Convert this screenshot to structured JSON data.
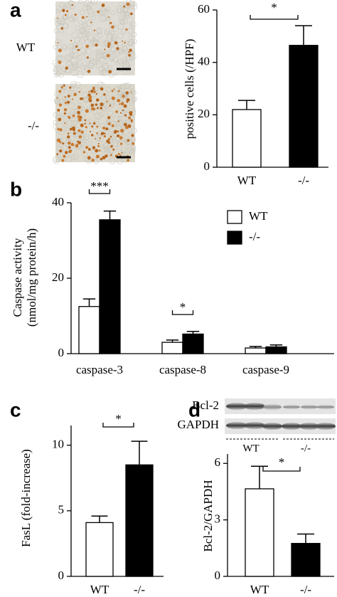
{
  "chart_data": [
    {
      "type": "bar",
      "panel_label": "a",
      "image_labels": [
        "WT",
        "-/-"
      ],
      "y_label": [
        "positive cells (/HPF)"
      ],
      "categories": [
        "WT",
        "-/-"
      ],
      "values": [
        22,
        46.5
      ],
      "errors": [
        3.5,
        7.5
      ],
      "colors": [
        "#ffffff",
        "#000000"
      ],
      "ylim": [
        0,
        60
      ],
      "yticks": [
        0,
        20,
        40,
        60
      ],
      "significance": "*"
    },
    {
      "type": "bar",
      "panel_label": "b",
      "y_label": [
        "Caspase activity",
        "(nmol/mg protein/h)"
      ],
      "categories": [
        "caspase-3",
        "caspase-8",
        "caspase-9"
      ],
      "series": [
        {
          "name": "WT",
          "color": "#ffffff",
          "values": [
            12.5,
            3,
            1.5
          ],
          "errors": [
            2,
            0.6,
            0.4
          ]
        },
        {
          "name": "-/-",
          "color": "#000000",
          "values": [
            35.5,
            5.2,
            1.8
          ],
          "errors": [
            2.3,
            0.7,
            0.5
          ]
        }
      ],
      "ylim": [
        0,
        40
      ],
      "yticks": [
        0,
        20,
        40
      ],
      "significance": [
        "***",
        "*",
        null
      ]
    },
    {
      "type": "bar",
      "panel_label": "c",
      "y_label": [
        "FasL (fold-increase)"
      ],
      "categories": [
        "WT",
        "-/-"
      ],
      "values": [
        4.1,
        8.5
      ],
      "errors": [
        0.5,
        1.8
      ],
      "colors": [
        "#ffffff",
        "#000000"
      ],
      "ylim": [
        0,
        11.5
      ],
      "yticks": [
        0,
        5,
        10
      ],
      "significance": "*"
    },
    {
      "type": "bar",
      "panel_label": "d",
      "blot_labels": [
        "Bcl-2",
        "GAPDH"
      ],
      "blot_groups": [
        "WT",
        "-/-"
      ],
      "y_label": [
        "Bcl-2/GAPDH"
      ],
      "categories": [
        "WT",
        "-/-"
      ],
      "values": [
        4.65,
        1.75
      ],
      "errors": [
        1.2,
        0.5
      ],
      "colors": [
        "#ffffff",
        "#000000"
      ],
      "ylim": [
        0,
        6.5
      ],
      "yticks": [
        0,
        3,
        6
      ],
      "significance": "*"
    }
  ]
}
